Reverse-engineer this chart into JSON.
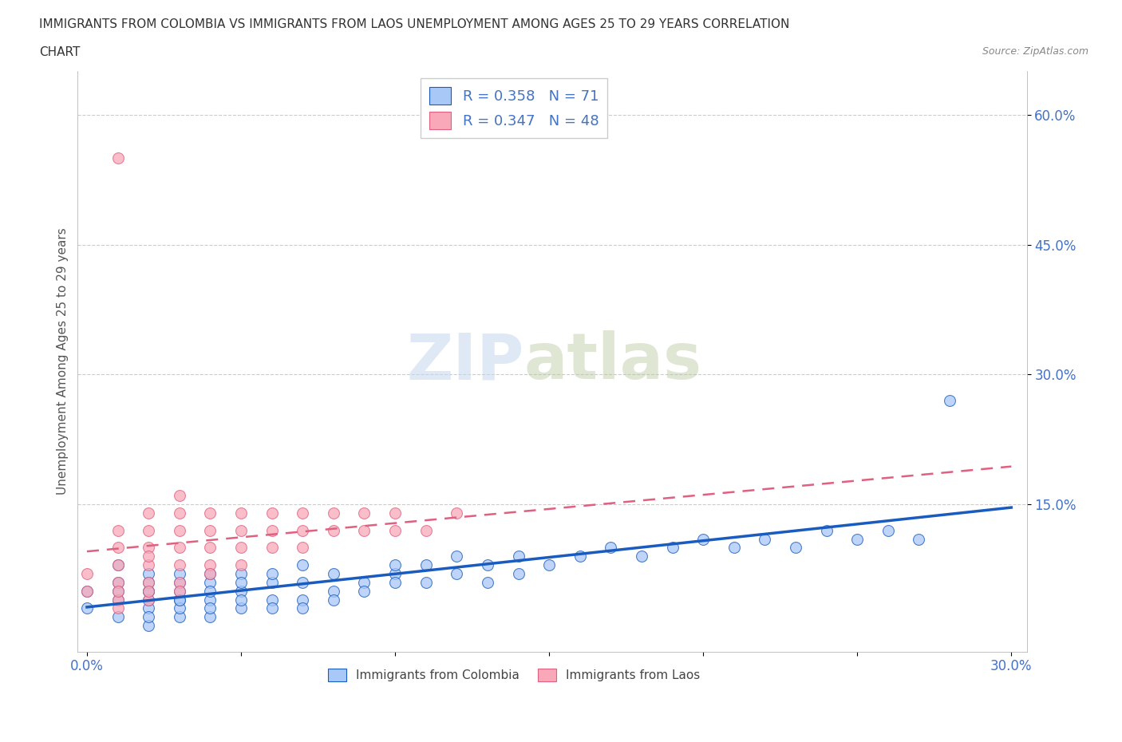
{
  "title_line1": "IMMIGRANTS FROM COLOMBIA VS IMMIGRANTS FROM LAOS UNEMPLOYMENT AMONG AGES 25 TO 29 YEARS CORRELATION",
  "title_line2": "CHART",
  "source": "Source: ZipAtlas.com",
  "ylabel": "Unemployment Among Ages 25 to 29 years",
  "xlim": [
    -0.003,
    0.305
  ],
  "ylim": [
    -0.02,
    0.65
  ],
  "xticks": [
    0.0,
    0.05,
    0.1,
    0.15,
    0.2,
    0.25,
    0.3
  ],
  "xtick_labels": [
    "0.0%",
    "",
    "",
    "",
    "",
    "",
    "30.0%"
  ],
  "ytick_positions": [
    0.15,
    0.3,
    0.45,
    0.6
  ],
  "ytick_labels": [
    "15.0%",
    "30.0%",
    "45.0%",
    "60.0%"
  ],
  "colombia_color": "#a8c8f8",
  "laos_color": "#f8a8b8",
  "colombia_line_color": "#1a5bbf",
  "laos_line_color": "#e06080",
  "colombia_R": 0.358,
  "colombia_N": 71,
  "laos_R": 0.347,
  "laos_N": 48,
  "legend_label_colombia": "Immigrants from Colombia",
  "legend_label_laos": "Immigrants from Laos",
  "watermark_zip": "ZIP",
  "watermark_atlas": "atlas",
  "background_color": "#ffffff",
  "grid_color": "#cccccc",
  "colombia_scatter_x": [
    0.0,
    0.0,
    0.01,
    0.01,
    0.01,
    0.01,
    0.01,
    0.02,
    0.02,
    0.02,
    0.02,
    0.02,
    0.02,
    0.02,
    0.02,
    0.03,
    0.03,
    0.03,
    0.03,
    0.03,
    0.03,
    0.03,
    0.04,
    0.04,
    0.04,
    0.04,
    0.04,
    0.04,
    0.05,
    0.05,
    0.05,
    0.05,
    0.05,
    0.06,
    0.06,
    0.06,
    0.06,
    0.07,
    0.07,
    0.07,
    0.07,
    0.08,
    0.08,
    0.08,
    0.09,
    0.09,
    0.1,
    0.1,
    0.1,
    0.11,
    0.11,
    0.12,
    0.12,
    0.13,
    0.13,
    0.14,
    0.14,
    0.15,
    0.16,
    0.17,
    0.18,
    0.19,
    0.2,
    0.21,
    0.22,
    0.23,
    0.24,
    0.25,
    0.26,
    0.27,
    0.28
  ],
  "colombia_scatter_y": [
    0.03,
    0.05,
    0.02,
    0.04,
    0.06,
    0.08,
    0.05,
    0.01,
    0.03,
    0.05,
    0.07,
    0.04,
    0.06,
    0.02,
    0.05,
    0.02,
    0.04,
    0.06,
    0.03,
    0.05,
    0.07,
    0.04,
    0.02,
    0.04,
    0.06,
    0.03,
    0.05,
    0.07,
    0.03,
    0.05,
    0.07,
    0.04,
    0.06,
    0.04,
    0.06,
    0.03,
    0.07,
    0.04,
    0.06,
    0.03,
    0.08,
    0.05,
    0.07,
    0.04,
    0.06,
    0.05,
    0.07,
    0.06,
    0.08,
    0.06,
    0.08,
    0.07,
    0.09,
    0.08,
    0.06,
    0.09,
    0.07,
    0.08,
    0.09,
    0.1,
    0.09,
    0.1,
    0.11,
    0.1,
    0.11,
    0.1,
    0.12,
    0.11,
    0.12,
    0.11,
    0.27
  ],
  "laos_scatter_x": [
    0.0,
    0.0,
    0.01,
    0.01,
    0.01,
    0.01,
    0.01,
    0.01,
    0.01,
    0.02,
    0.02,
    0.02,
    0.02,
    0.02,
    0.02,
    0.02,
    0.02,
    0.03,
    0.03,
    0.03,
    0.03,
    0.03,
    0.03,
    0.03,
    0.04,
    0.04,
    0.04,
    0.04,
    0.04,
    0.05,
    0.05,
    0.05,
    0.05,
    0.06,
    0.06,
    0.06,
    0.07,
    0.07,
    0.07,
    0.08,
    0.08,
    0.09,
    0.09,
    0.1,
    0.1,
    0.11,
    0.12,
    0.01
  ],
  "laos_scatter_y": [
    0.05,
    0.07,
    0.04,
    0.06,
    0.08,
    0.1,
    0.12,
    0.03,
    0.05,
    0.04,
    0.06,
    0.08,
    0.1,
    0.12,
    0.14,
    0.05,
    0.09,
    0.06,
    0.08,
    0.1,
    0.12,
    0.14,
    0.16,
    0.05,
    0.08,
    0.1,
    0.12,
    0.14,
    0.07,
    0.1,
    0.12,
    0.14,
    0.08,
    0.1,
    0.12,
    0.14,
    0.12,
    0.14,
    0.1,
    0.12,
    0.14,
    0.12,
    0.14,
    0.12,
    0.14,
    0.12,
    0.14,
    0.55
  ]
}
